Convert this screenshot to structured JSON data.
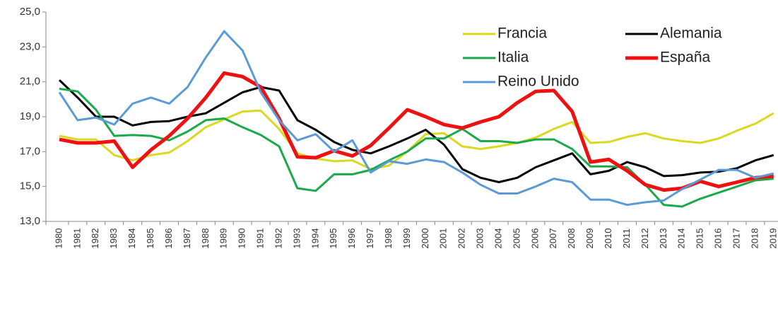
{
  "chart_data": {
    "type": "line",
    "categories": [
      "1980",
      "1981",
      "1982",
      "1983",
      "1984",
      "1985",
      "1986",
      "1987",
      "1988",
      "1989",
      "1990",
      "1991",
      "1992",
      "1993",
      "1994",
      "1995",
      "1996",
      "1997",
      "1998",
      "1999",
      "2000",
      "2001",
      "2002",
      "2003",
      "2004",
      "2005",
      "2006",
      "2007",
      "2008",
      "2009",
      "2010",
      "2011",
      "2012",
      "2013",
      "2014",
      "2015",
      "2016",
      "2017",
      "2018",
      "2019"
    ],
    "series": [
      {
        "name": "Francia",
        "color": "#d9d91f",
        "line_width": 3,
        "values": [
          17.9,
          17.7,
          17.7,
          16.8,
          16.5,
          16.8,
          16.95,
          17.6,
          18.4,
          18.85,
          19.3,
          19.35,
          18.3,
          16.9,
          16.6,
          16.45,
          16.5,
          16.0,
          16.2,
          17.0,
          18.0,
          18.05,
          17.3,
          17.15,
          17.3,
          17.5,
          17.8,
          18.3,
          18.7,
          17.5,
          17.55,
          17.85,
          18.05,
          17.75,
          17.6,
          17.5,
          17.75,
          18.2,
          18.6,
          19.2
        ]
      },
      {
        "name": "Alemania",
        "color": "#000000",
        "line_width": 3,
        "values": [
          21.1,
          20.1,
          19.0,
          19.0,
          18.5,
          18.7,
          18.75,
          19.0,
          19.2,
          19.8,
          20.4,
          20.7,
          20.5,
          18.8,
          18.25,
          17.55,
          17.1,
          16.9,
          17.3,
          17.75,
          18.25,
          17.4,
          16.0,
          15.5,
          15.25,
          15.5,
          16.1,
          16.5,
          16.9,
          15.7,
          15.9,
          16.4,
          16.1,
          15.6,
          15.65,
          15.8,
          15.85,
          16.05,
          16.5,
          16.8
        ]
      },
      {
        "name": "Italia",
        "color": "#1aaa4b",
        "line_width": 3,
        "values": [
          20.6,
          20.45,
          19.4,
          17.9,
          17.95,
          17.9,
          17.65,
          18.15,
          18.8,
          18.9,
          18.4,
          17.95,
          17.3,
          14.9,
          14.75,
          15.7,
          15.7,
          15.95,
          16.5,
          17.0,
          17.75,
          17.75,
          18.3,
          17.6,
          17.6,
          17.5,
          17.7,
          17.7,
          17.15,
          16.15,
          16.15,
          16.1,
          15.1,
          13.95,
          13.85,
          14.3,
          14.65,
          15.0,
          15.35,
          15.45
        ]
      },
      {
        "name": "España",
        "color": "#ee1111",
        "line_width": 5,
        "values": [
          17.7,
          17.5,
          17.5,
          17.6,
          16.1,
          17.1,
          17.9,
          18.9,
          20.1,
          21.5,
          21.3,
          20.7,
          18.9,
          16.7,
          16.65,
          17.05,
          16.75,
          17.35,
          18.35,
          19.4,
          19.0,
          18.55,
          18.35,
          18.7,
          19.0,
          19.8,
          20.45,
          20.5,
          19.3,
          16.4,
          16.55,
          15.9,
          15.1,
          14.8,
          14.9,
          15.3,
          15.0,
          15.25,
          15.5,
          15.6
        ]
      },
      {
        "name": "Reino Unido",
        "color": "#5b9bd5",
        "line_width": 3,
        "values": [
          20.4,
          18.8,
          18.95,
          18.55,
          19.75,
          20.1,
          19.75,
          20.7,
          22.4,
          23.9,
          22.8,
          20.4,
          18.8,
          17.65,
          18.0,
          17.0,
          17.65,
          15.8,
          16.45,
          16.3,
          16.55,
          16.4,
          15.8,
          15.1,
          14.6,
          14.6,
          15.0,
          15.45,
          15.25,
          14.25,
          14.25,
          13.95,
          14.1,
          14.2,
          14.85,
          15.4,
          15.95,
          15.95,
          15.5,
          15.75
        ]
      }
    ],
    "ylim": [
      13,
      25
    ],
    "yticks": [
      {
        "value": 13,
        "label": "13,0"
      },
      {
        "value": 15,
        "label": "15,0"
      },
      {
        "value": 17,
        "label": "17,0"
      },
      {
        "value": 19,
        "label": "19,0"
      },
      {
        "value": 21,
        "label": "21,0"
      },
      {
        "value": 23,
        "label": "23,0"
      },
      {
        "value": 25,
        "label": "25,0"
      }
    ],
    "grid": false,
    "legend": "upper right"
  }
}
